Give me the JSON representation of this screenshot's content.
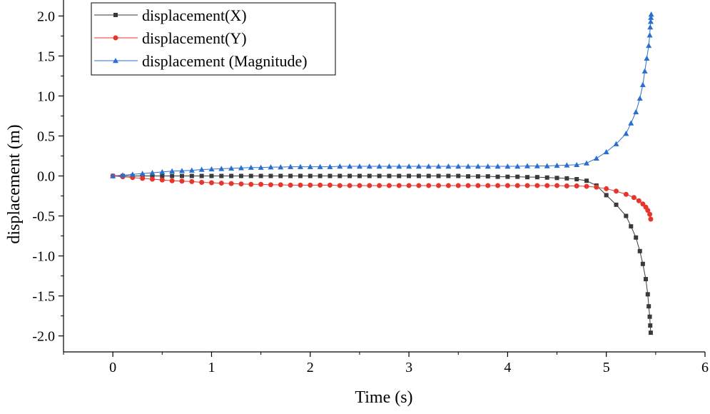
{
  "chart_data": {
    "type": "line",
    "xlabel": "Time (s)",
    "ylabel": "displacement (m)",
    "xlim": [
      -0.5,
      6.0
    ],
    "ylim": [
      -2.2,
      2.2
    ],
    "x_ticks": [
      "0",
      "1",
      "2",
      "3",
      "4",
      "5",
      "6"
    ],
    "y_ticks": [
      "-2.0",
      "-1.5",
      "-1.0",
      "-0.5",
      "0.0",
      "0.5",
      "1.0",
      "1.5",
      "2.0"
    ],
    "legend_position": "top-left",
    "series": [
      {
        "name": "displacement(X)",
        "color": "#3a3a3a",
        "marker": "square",
        "points": [
          [
            0.0,
            0.0
          ],
          [
            0.1,
            0.0
          ],
          [
            0.2,
            0.0
          ],
          [
            0.3,
            0.0
          ],
          [
            0.4,
            0.0
          ],
          [
            0.5,
            0.0
          ],
          [
            0.6,
            0.0
          ],
          [
            0.7,
            0.0
          ],
          [
            0.8,
            0.0
          ],
          [
            0.9,
            0.0
          ],
          [
            1.0,
            0.0
          ],
          [
            1.1,
            0.0
          ],
          [
            1.2,
            0.0
          ],
          [
            1.3,
            0.0
          ],
          [
            1.4,
            0.0
          ],
          [
            1.5,
            0.0
          ],
          [
            1.6,
            0.0
          ],
          [
            1.7,
            0.0
          ],
          [
            1.8,
            0.0
          ],
          [
            1.9,
            0.0
          ],
          [
            2.0,
            0.0
          ],
          [
            2.1,
            0.0
          ],
          [
            2.2,
            0.0
          ],
          [
            2.3,
            0.0
          ],
          [
            2.4,
            0.0
          ],
          [
            2.5,
            0.0
          ],
          [
            2.6,
            0.0
          ],
          [
            2.7,
            0.0
          ],
          [
            2.8,
            0.0
          ],
          [
            2.9,
            0.0
          ],
          [
            3.0,
            0.0
          ],
          [
            3.1,
            0.0
          ],
          [
            3.2,
            0.0
          ],
          [
            3.3,
            0.0
          ],
          [
            3.4,
            0.0
          ],
          [
            3.5,
            0.0
          ],
          [
            3.6,
            -0.005
          ],
          [
            3.7,
            -0.005
          ],
          [
            3.8,
            -0.005
          ],
          [
            3.9,
            -0.01
          ],
          [
            4.0,
            -0.01
          ],
          [
            4.1,
            -0.01
          ],
          [
            4.2,
            -0.015
          ],
          [
            4.3,
            -0.015
          ],
          [
            4.4,
            -0.02
          ],
          [
            4.5,
            -0.025
          ],
          [
            4.6,
            -0.03
          ],
          [
            4.7,
            -0.04
          ],
          [
            4.8,
            -0.06
          ],
          [
            4.9,
            -0.12
          ],
          [
            5.0,
            -0.24
          ],
          [
            5.1,
            -0.36
          ],
          [
            5.2,
            -0.5
          ],
          [
            5.25,
            -0.63
          ],
          [
            5.3,
            -0.77
          ],
          [
            5.34,
            -0.94
          ],
          [
            5.37,
            -1.1
          ],
          [
            5.4,
            -1.29
          ],
          [
            5.42,
            -1.48
          ],
          [
            5.43,
            -1.63
          ],
          [
            5.44,
            -1.76
          ],
          [
            5.445,
            -1.87
          ],
          [
            5.45,
            -1.96
          ]
        ]
      },
      {
        "name": "displacement(Y)",
        "color": "#e8352c",
        "marker": "circle",
        "points": [
          [
            0.0,
            0.0
          ],
          [
            0.1,
            -0.01
          ],
          [
            0.2,
            -0.02
          ],
          [
            0.3,
            -0.03
          ],
          [
            0.4,
            -0.04
          ],
          [
            0.5,
            -0.05
          ],
          [
            0.6,
            -0.06
          ],
          [
            0.7,
            -0.065
          ],
          [
            0.8,
            -0.07
          ],
          [
            0.9,
            -0.08
          ],
          [
            1.0,
            -0.085
          ],
          [
            1.1,
            -0.09
          ],
          [
            1.2,
            -0.095
          ],
          [
            1.3,
            -0.1
          ],
          [
            1.4,
            -0.105
          ],
          [
            1.5,
            -0.105
          ],
          [
            1.6,
            -0.11
          ],
          [
            1.7,
            -0.11
          ],
          [
            1.8,
            -0.115
          ],
          [
            1.9,
            -0.115
          ],
          [
            2.0,
            -0.115
          ],
          [
            2.1,
            -0.115
          ],
          [
            2.2,
            -0.115
          ],
          [
            2.3,
            -0.12
          ],
          [
            2.4,
            -0.12
          ],
          [
            2.5,
            -0.12
          ],
          [
            2.6,
            -0.12
          ],
          [
            2.7,
            -0.12
          ],
          [
            2.8,
            -0.12
          ],
          [
            2.9,
            -0.12
          ],
          [
            3.0,
            -0.12
          ],
          [
            3.1,
            -0.12
          ],
          [
            3.2,
            -0.12
          ],
          [
            3.3,
            -0.12
          ],
          [
            3.4,
            -0.12
          ],
          [
            3.5,
            -0.12
          ],
          [
            3.6,
            -0.12
          ],
          [
            3.7,
            -0.12
          ],
          [
            3.8,
            -0.12
          ],
          [
            3.9,
            -0.12
          ],
          [
            4.0,
            -0.12
          ],
          [
            4.1,
            -0.12
          ],
          [
            4.2,
            -0.12
          ],
          [
            4.3,
            -0.12
          ],
          [
            4.4,
            -0.12
          ],
          [
            4.5,
            -0.12
          ],
          [
            4.6,
            -0.125
          ],
          [
            4.7,
            -0.125
          ],
          [
            4.8,
            -0.13
          ],
          [
            4.9,
            -0.14
          ],
          [
            5.0,
            -0.16
          ],
          [
            5.1,
            -0.19
          ],
          [
            5.2,
            -0.23
          ],
          [
            5.28,
            -0.27
          ],
          [
            5.33,
            -0.31
          ],
          [
            5.37,
            -0.35
          ],
          [
            5.4,
            -0.39
          ],
          [
            5.42,
            -0.43
          ],
          [
            5.44,
            -0.48
          ],
          [
            5.45,
            -0.54
          ]
        ]
      },
      {
        "name": "displacement (Magnitude)",
        "color": "#2a6fd0",
        "marker": "triangle",
        "points": [
          [
            0.0,
            0.0
          ],
          [
            0.1,
            0.01
          ],
          [
            0.2,
            0.02
          ],
          [
            0.3,
            0.03
          ],
          [
            0.4,
            0.04
          ],
          [
            0.5,
            0.05
          ],
          [
            0.6,
            0.06
          ],
          [
            0.7,
            0.065
          ],
          [
            0.8,
            0.07
          ],
          [
            0.9,
            0.08
          ],
          [
            1.0,
            0.085
          ],
          [
            1.1,
            0.09
          ],
          [
            1.2,
            0.095
          ],
          [
            1.3,
            0.1
          ],
          [
            1.4,
            0.105
          ],
          [
            1.5,
            0.105
          ],
          [
            1.6,
            0.11
          ],
          [
            1.7,
            0.11
          ],
          [
            1.8,
            0.115
          ],
          [
            1.9,
            0.115
          ],
          [
            2.0,
            0.115
          ],
          [
            2.1,
            0.115
          ],
          [
            2.2,
            0.115
          ],
          [
            2.3,
            0.12
          ],
          [
            2.4,
            0.12
          ],
          [
            2.5,
            0.12
          ],
          [
            2.6,
            0.12
          ],
          [
            2.7,
            0.12
          ],
          [
            2.8,
            0.12
          ],
          [
            2.9,
            0.12
          ],
          [
            3.0,
            0.12
          ],
          [
            3.1,
            0.12
          ],
          [
            3.2,
            0.12
          ],
          [
            3.3,
            0.12
          ],
          [
            3.4,
            0.12
          ],
          [
            3.5,
            0.12
          ],
          [
            3.6,
            0.12
          ],
          [
            3.7,
            0.12
          ],
          [
            3.8,
            0.12
          ],
          [
            3.9,
            0.12
          ],
          [
            4.0,
            0.12
          ],
          [
            4.1,
            0.12
          ],
          [
            4.2,
            0.125
          ],
          [
            4.3,
            0.125
          ],
          [
            4.4,
            0.125
          ],
          [
            4.5,
            0.13
          ],
          [
            4.6,
            0.135
          ],
          [
            4.7,
            0.14
          ],
          [
            4.8,
            0.16
          ],
          [
            4.9,
            0.22
          ],
          [
            5.0,
            0.3
          ],
          [
            5.1,
            0.4
          ],
          [
            5.2,
            0.53
          ],
          [
            5.25,
            0.66
          ],
          [
            5.3,
            0.8
          ],
          [
            5.34,
            0.97
          ],
          [
            5.37,
            1.14
          ],
          [
            5.39,
            1.31
          ],
          [
            5.41,
            1.47
          ],
          [
            5.43,
            1.63
          ],
          [
            5.44,
            1.76
          ],
          [
            5.445,
            1.86
          ],
          [
            5.45,
            1.93
          ],
          [
            5.452,
            1.98
          ],
          [
            5.455,
            2.02
          ]
        ]
      }
    ]
  }
}
